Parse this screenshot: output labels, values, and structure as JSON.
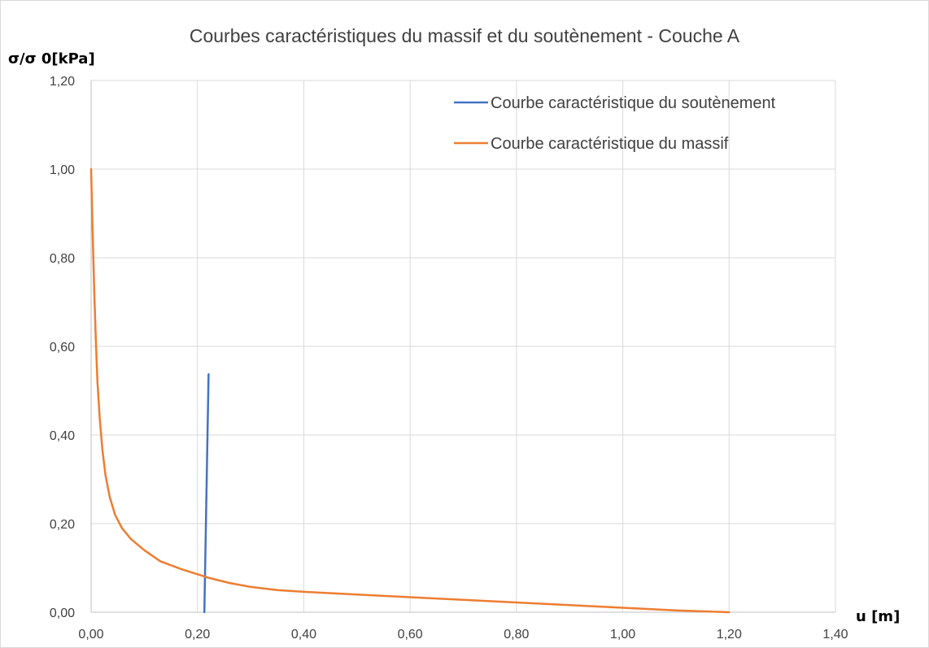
{
  "chart_data": {
    "type": "line",
    "title": "Courbes caractéristiques du massif et du soutènement - Couche A",
    "xlabel": "u [m]",
    "ylabel": "σ/σ 0[kPa]",
    "xlim": [
      0,
      1.4
    ],
    "ylim": [
      0,
      1.2
    ],
    "x_ticks": [
      "0,00",
      "0,20",
      "0,40",
      "0,60",
      "0,80",
      "1,00",
      "1,20",
      "1,40"
    ],
    "y_ticks": [
      "0,00",
      "0,20",
      "0,40",
      "0,60",
      "0,80",
      "1,00",
      "1,20"
    ],
    "grid": true,
    "legend_position": "top-right",
    "series": [
      {
        "name": "Courbe caractéristique du soutènement",
        "color": "#4472C4",
        "points": [
          [
            0.213,
            0.0
          ],
          [
            0.221,
            0.537
          ]
        ]
      },
      {
        "name": "Courbe caractéristique du massif",
        "color": "#ED7D31",
        "points": [
          [
            0.0,
            1.0
          ],
          [
            0.003,
            0.85
          ],
          [
            0.006,
            0.72
          ],
          [
            0.009,
            0.61
          ],
          [
            0.012,
            0.52
          ],
          [
            0.016,
            0.44
          ],
          [
            0.021,
            0.37
          ],
          [
            0.027,
            0.31
          ],
          [
            0.035,
            0.26
          ],
          [
            0.045,
            0.22
          ],
          [
            0.058,
            0.19
          ],
          [
            0.075,
            0.165
          ],
          [
            0.1,
            0.14
          ],
          [
            0.13,
            0.115
          ],
          [
            0.17,
            0.097
          ],
          [
            0.22,
            0.078
          ],
          [
            0.26,
            0.066
          ],
          [
            0.3,
            0.057
          ],
          [
            0.35,
            0.05
          ],
          [
            0.4,
            0.046
          ],
          [
            0.5,
            0.04
          ],
          [
            0.6,
            0.034
          ],
          [
            0.7,
            0.028
          ],
          [
            0.8,
            0.022
          ],
          [
            0.9,
            0.016
          ],
          [
            1.0,
            0.01
          ],
          [
            1.1,
            0.004
          ],
          [
            1.2,
            0.0
          ]
        ]
      }
    ]
  }
}
